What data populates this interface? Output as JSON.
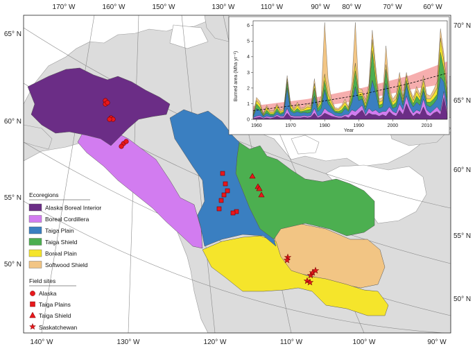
{
  "map": {
    "lon_top": [
      "170° W",
      "160° W",
      "150° W",
      "130° W",
      "110° W",
      "90° W",
      "80° W",
      "70° W",
      "60° W"
    ],
    "lon_bottom": [
      "140° W",
      "130° W",
      "120° W",
      "110° W",
      "100° W",
      "90° W"
    ],
    "lat_left": [
      "65° N",
      "60° N",
      "55° N",
      "50° N"
    ],
    "lat_right": [
      "70° N",
      "65° N",
      "60° N",
      "55° N",
      "50° N"
    ]
  },
  "legend": {
    "ecoregions_title": "Ecoregions",
    "ecoregions": [
      {
        "label": "Alaska Boreal Interior",
        "color": "#6b2d86"
      },
      {
        "label": "Boreal Cordillera",
        "color": "#d27cf0"
      },
      {
        "label": "Taiga Plain",
        "color": "#3a7fc1"
      },
      {
        "label": "Taiga Shield",
        "color": "#4caf50"
      },
      {
        "label": "Boreal Plain",
        "color": "#f5e52b"
      },
      {
        "label": "Softwood Shield",
        "color": "#f2c584"
      }
    ],
    "sites_title": "Field sites",
    "sites": [
      {
        "label": "Alaska",
        "icon": "circle-icon"
      },
      {
        "label": "Taiga Plains",
        "icon": "square-icon"
      },
      {
        "label": "Taiga Shield",
        "icon": "triangle-icon"
      },
      {
        "label": "Saskatchewan",
        "icon": "star-icon"
      }
    ]
  },
  "chart_data": {
    "type": "area",
    "ylabel": "Burned area (Mha yr⁻¹)",
    "xlabel": "Year",
    "xlim": [
      1959,
      2016
    ],
    "ylim": [
      0,
      6.3
    ],
    "x_ticks": [
      "1960",
      "1970",
      "1980",
      "1990",
      "2000",
      "2010"
    ],
    "y_ticks": [
      "0",
      "1",
      "2",
      "3",
      "4",
      "5",
      "6"
    ],
    "x": [
      1959,
      1960,
      1961,
      1962,
      1963,
      1964,
      1965,
      1966,
      1967,
      1968,
      1969,
      1970,
      1971,
      1972,
      1973,
      1974,
      1975,
      1976,
      1977,
      1978,
      1979,
      1980,
      1981,
      1982,
      1983,
      1984,
      1985,
      1986,
      1987,
      1988,
      1989,
      1990,
      1991,
      1992,
      1993,
      1994,
      1995,
      1996,
      1997,
      1998,
      1999,
      2000,
      2001,
      2002,
      2003,
      2004,
      2005,
      2006,
      2007,
      2008,
      2009,
      2010,
      2011,
      2012,
      2013,
      2014,
      2015,
      2016
    ],
    "series": [
      {
        "color": "#6b2d86",
        "values": [
          0.05,
          0.1,
          0.15,
          0.05,
          0.1,
          0.05,
          0.1,
          0.2,
          0.1,
          0.1,
          0.4,
          0.15,
          0.1,
          0.1,
          0.1,
          0.15,
          0.1,
          0.15,
          0.4,
          0.1,
          0.2,
          0.4,
          0.3,
          0.2,
          0.15,
          0.1,
          0.1,
          0.2,
          0.1,
          0.3,
          0.2,
          0.4,
          0.6,
          0.2,
          0.4,
          0.3,
          0.3,
          0.2,
          0.3,
          0.2,
          0.5,
          0.3,
          0.2,
          0.6,
          0.3,
          1.0,
          0.5,
          0.2,
          0.4,
          0.3,
          0.8,
          0.3,
          0.2,
          0.4,
          0.5,
          0.3,
          1.4,
          0.3
        ]
      },
      {
        "color": "#d27cf0",
        "values": [
          0.05,
          0.1,
          0.1,
          0.05,
          0.1,
          0.1,
          0.05,
          0.1,
          0.1,
          0.1,
          0.3,
          0.1,
          0.1,
          0.1,
          0.1,
          0.1,
          0.1,
          0.1,
          0.3,
          0.1,
          0.1,
          0.3,
          0.2,
          0.2,
          0.1,
          0.1,
          0.1,
          0.1,
          0.2,
          0.3,
          0.3,
          0.3,
          0.3,
          0.1,
          0.3,
          0.2,
          0.3,
          0.2,
          0.2,
          0.3,
          0.3,
          0.2,
          0.2,
          0.4,
          0.3,
          0.5,
          0.3,
          0.2,
          0.2,
          0.2,
          0.5,
          0.3,
          0.2,
          0.2,
          0.3,
          0.2,
          0.4,
          0.2
        ]
      },
      {
        "color": "#3a7fc1",
        "values": [
          0.05,
          0.5,
          0.3,
          0.1,
          0.2,
          0.1,
          0.1,
          0.2,
          0.1,
          0.2,
          1.3,
          0.3,
          0.2,
          0.3,
          0.2,
          0.2,
          0.2,
          0.2,
          0.8,
          0.3,
          0.4,
          1.2,
          0.5,
          0.3,
          0.2,
          0.2,
          0.2,
          0.4,
          0.2,
          0.5,
          1.6,
          0.5,
          0.4,
          0.3,
          0.6,
          2.0,
          1.1,
          0.3,
          0.3,
          1.8,
          0.4,
          0.2,
          0.4,
          0.7,
          0.3,
          0.7,
          0.4,
          0.4,
          0.5,
          0.4,
          0.5,
          0.3,
          0.4,
          0.4,
          0.5,
          2.2,
          0.6,
          0.5
        ]
      },
      {
        "color": "#4caf50",
        "values": [
          0.05,
          0.3,
          0.2,
          0.05,
          0.2,
          0.1,
          0.1,
          0.2,
          0.1,
          0.1,
          0.4,
          0.2,
          0.1,
          0.2,
          0.1,
          0.1,
          0.2,
          0.2,
          0.5,
          0.2,
          0.3,
          0.6,
          0.3,
          0.2,
          0.1,
          0.1,
          0.2,
          0.2,
          0.1,
          0.4,
          1.0,
          0.3,
          0.2,
          0.2,
          0.4,
          1.9,
          0.8,
          0.2,
          0.2,
          0.9,
          0.3,
          0.2,
          0.3,
          0.5,
          0.2,
          0.3,
          0.3,
          0.2,
          0.4,
          0.3,
          0.3,
          0.2,
          0.3,
          0.3,
          0.3,
          1.6,
          0.8,
          0.4
        ]
      },
      {
        "color": "#f5e52b",
        "values": [
          0.05,
          0.2,
          0.2,
          0.05,
          0.2,
          0.1,
          0.1,
          0.2,
          0.1,
          0.1,
          0.2,
          0.2,
          0.1,
          0.2,
          0.1,
          0.1,
          0.2,
          0.1,
          0.3,
          0.1,
          0.2,
          0.4,
          0.3,
          0.2,
          0.1,
          0.1,
          0.2,
          0.2,
          0.1,
          0.3,
          0.5,
          0.2,
          0.2,
          0.2,
          0.3,
          0.7,
          0.5,
          0.2,
          0.2,
          0.3,
          0.2,
          0.2,
          0.2,
          0.4,
          0.2,
          0.3,
          0.3,
          0.2,
          0.3,
          0.2,
          0.4,
          0.2,
          0.2,
          0.3,
          0.4,
          0.9,
          0.5,
          0.3
        ]
      },
      {
        "color": "#f2c584",
        "values": [
          0.05,
          0.2,
          0.2,
          0.05,
          0.1,
          0.1,
          0.1,
          0.1,
          0.1,
          0.1,
          0.2,
          0.1,
          0.1,
          0.2,
          0.1,
          0.1,
          0.2,
          0.1,
          0.3,
          0.1,
          0.3,
          3.3,
          1.0,
          0.2,
          0.1,
          0.1,
          0.1,
          0.2,
          0.1,
          0.6,
          2.6,
          0.3,
          0.2,
          0.2,
          0.3,
          0.6,
          0.4,
          0.2,
          0.2,
          1.2,
          0.3,
          0.2,
          0.3,
          0.4,
          0.2,
          0.2,
          0.2,
          0.2,
          0.3,
          0.2,
          0.3,
          0.3,
          0.2,
          0.3,
          0.4,
          0.6,
          0.5,
          0.3
        ]
      }
    ],
    "trend": {
      "color": "#000000",
      "dash": true,
      "values": [
        [
          1959,
          0.55
        ],
        [
          1975,
          1.0
        ],
        [
          1990,
          1.55
        ],
        [
          2005,
          2.3
        ],
        [
          2016,
          2.95
        ]
      ]
    },
    "trend_band": {
      "color": "#f5a0a0",
      "lower": [
        [
          1959,
          0.3
        ],
        [
          1975,
          0.7
        ],
        [
          1990,
          1.2
        ],
        [
          2005,
          1.9
        ],
        [
          2016,
          2.3
        ]
      ],
      "upper": [
        [
          1959,
          0.85
        ],
        [
          1975,
          1.3
        ],
        [
          1990,
          1.95
        ],
        [
          2005,
          2.8
        ],
        [
          2016,
          3.7
        ]
      ]
    }
  }
}
